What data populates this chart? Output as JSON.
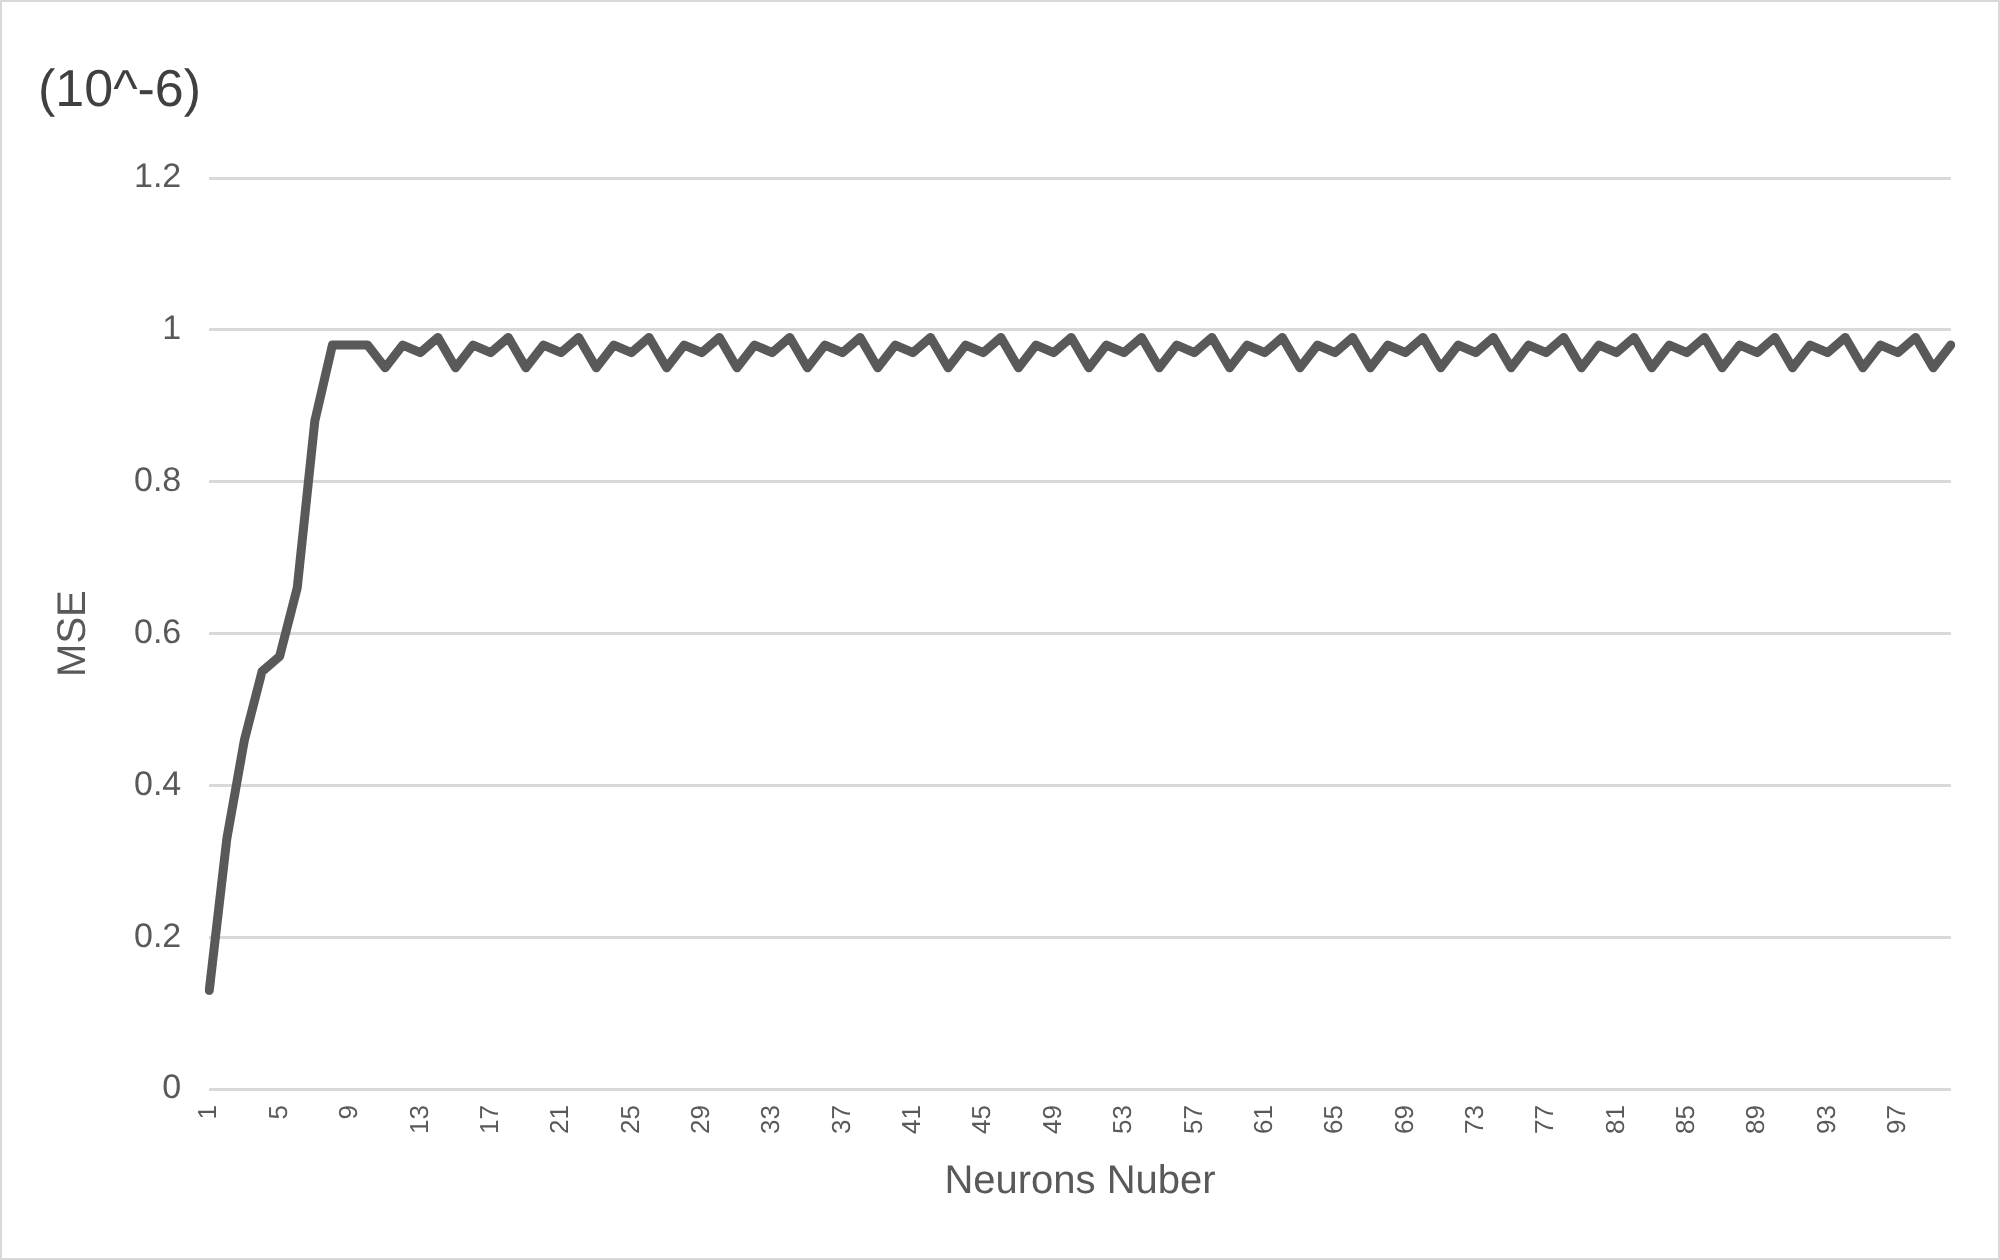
{
  "chart_data": {
    "type": "line",
    "xlabel": "Neurons Nuber",
    "ylabel": "MSE",
    "annotations": [
      "(10^-6)"
    ],
    "categories": [
      "1",
      null,
      null,
      null,
      "5",
      null,
      null,
      null,
      "9",
      null,
      null,
      null,
      "13",
      null,
      null,
      null,
      "17",
      null,
      null,
      null,
      "21",
      null,
      null,
      null,
      "25",
      null,
      null,
      null,
      "29",
      null,
      null,
      null,
      "33",
      null,
      null,
      null,
      "37",
      null,
      null,
      null,
      "41",
      null,
      null,
      null,
      "45",
      null,
      null,
      null,
      "49",
      null,
      null,
      null,
      "53",
      null,
      null,
      null,
      "57",
      null,
      null,
      null,
      "61",
      null,
      null,
      null,
      "65",
      null,
      null,
      null,
      "69",
      null,
      null,
      null,
      "73",
      null,
      null,
      null,
      "77",
      null,
      null,
      null,
      "81",
      null,
      null,
      null,
      "85",
      null,
      null,
      null,
      "89",
      null,
      null,
      null,
      "93",
      null,
      null,
      null,
      "97",
      null,
      null,
      null
    ],
    "series": [
      {
        "color": "#595959",
        "values": [
          0.13,
          0.33,
          0.46,
          0.55,
          0.57,
          0.66,
          0.88,
          0.98,
          0.98,
          0.98,
          0.95,
          0.98,
          0.97,
          0.99,
          0.95,
          0.98,
          0.97,
          0.99,
          0.95,
          0.98,
          0.97,
          0.99,
          0.95,
          0.98,
          0.97,
          0.99,
          0.95,
          0.98,
          0.97,
          0.99,
          0.95,
          0.98,
          0.97,
          0.99,
          0.95,
          0.98,
          0.97,
          0.99,
          0.95,
          0.98,
          0.97,
          0.99,
          0.95,
          0.98,
          0.97,
          0.99,
          0.95,
          0.98,
          0.97,
          0.99,
          0.95,
          0.98,
          0.97,
          0.99,
          0.95,
          0.98,
          0.97,
          0.99,
          0.95,
          0.98,
          0.97,
          0.99,
          0.95,
          0.98,
          0.97,
          0.99,
          0.95,
          0.98,
          0.97,
          0.99,
          0.95,
          0.98,
          0.97,
          0.99,
          0.95,
          0.98,
          0.97,
          0.99,
          0.95,
          0.98,
          0.97,
          0.99,
          0.95,
          0.98,
          0.97,
          0.99,
          0.95,
          0.98,
          0.97,
          0.99,
          0.95,
          0.98,
          0.97,
          0.99,
          0.95,
          0.98,
          0.97,
          0.99,
          0.95,
          0.98
        ]
      }
    ],
    "ylim": [
      0,
      1.2
    ],
    "yticks": [
      0,
      0.2,
      0.4,
      0.6,
      0.8,
      1,
      1.2
    ],
    "grid": "y",
    "legend": false,
    "marker": "none",
    "line_style": "solid"
  }
}
